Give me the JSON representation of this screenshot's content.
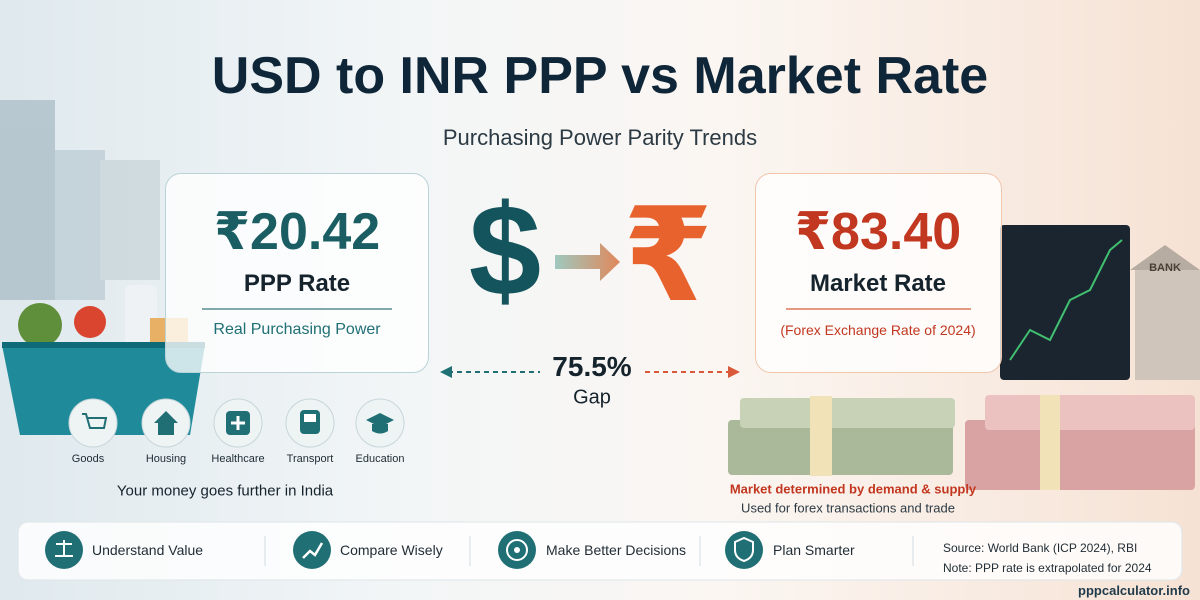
{
  "header": {
    "title": "USD to INR PPP vs Market Rate",
    "subtitle": "Purchasing Power Parity Trends"
  },
  "ppp_card": {
    "value": "₹20.42",
    "label": "PPP Rate",
    "note": "Real Purchasing Power"
  },
  "market_card": {
    "value": "₹83.40",
    "label": "Market Rate",
    "note": "(Forex Exchange Rate of 2024)"
  },
  "symbols": [
    "$",
    "₹"
  ],
  "gap": {
    "value": "75.5%",
    "label": "Gap"
  },
  "spending": {
    "items": [
      "Goods",
      "Housing",
      "Healthcare",
      "Transport",
      "Education"
    ],
    "caption": "Your money goes further in India"
  },
  "market_notes": [
    "Market determined by demand & supply",
    "Used for forex transactions and trade"
  ],
  "bank_sign": "BANK",
  "footer": {
    "items": [
      "Understand Value",
      "Compare Wisely",
      "Make Better Decisions",
      "Plan Smarter"
    ],
    "source": "Source: World Bank (ICP 2024), RBI",
    "note": "Note: PPP rate is extrapolated for 2024"
  },
  "watermark": "pppcalculator.info"
}
